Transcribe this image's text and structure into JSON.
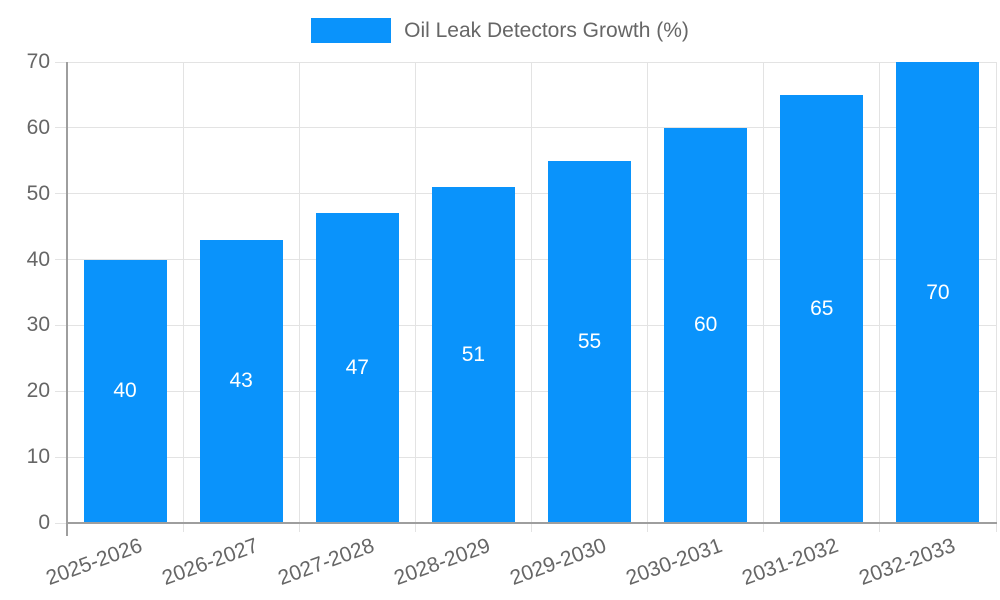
{
  "legend": {
    "label": "Oil Leak Detectors Growth (%)"
  },
  "chart_data": {
    "type": "bar",
    "title": "Oil Leak Detectors Growth (%)",
    "series_name": "Oil Leak Detectors Growth (%)",
    "categories": [
      "2025-2026",
      "2026-2027",
      "2027-2028",
      "2028-2029",
      "2029-2030",
      "2030-2031",
      "2031-2032",
      "2032-2033"
    ],
    "values": [
      40,
      43,
      47,
      51,
      55,
      60,
      65,
      70
    ],
    "bar_labels": [
      "40",
      "43",
      "47",
      "51",
      "55",
      "60",
      "65",
      "70"
    ],
    "xlabel": "",
    "ylabel": "",
    "ylim": [
      0,
      70
    ],
    "yticks": [
      0,
      10,
      20,
      30,
      40,
      50,
      60,
      70
    ],
    "grid": true,
    "legend_position": "top-center",
    "x_label_rotation_deg": -20,
    "colors": {
      "bar": "#0a93fb",
      "bar_label": "#ffffff",
      "grid": "#e3e3e3",
      "axis": "#9e9e9e",
      "tick_text": "#666666",
      "background": "#ffffff"
    }
  }
}
